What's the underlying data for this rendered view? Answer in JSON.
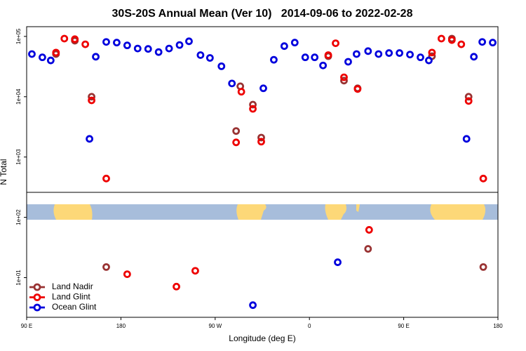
{
  "chart_data": {
    "type": "scatter",
    "title": "30S-20S Annual Mean (Ver 10)   2014-09-06 to 2022-02-28",
    "x_label": "Longitude (deg E)",
    "y_label": "N Total",
    "ylog": true,
    "legend_position": "bottom-left",
    "xlim": [
      90,
      540
    ],
    "xticks": [
      {
        "value": 90,
        "label": "90 E"
      },
      180,
      {
        "value": 270,
        "label": "90 W"
      },
      {
        "value": 360,
        "label": "0"
      },
      {
        "value": 450,
        "label": "90 E"
      },
      {
        "value": 540,
        "label": "180"
      }
    ],
    "ylim": [
      2.2,
      145000
    ],
    "yticks": [
      {
        "value": 10,
        "label": "1e+01"
      },
      {
        "value": 100,
        "label": "1e+02"
      },
      {
        "value": 1000,
        "label": "1e+03"
      },
      {
        "value": 10000,
        "label": "1e+04"
      },
      {
        "value": 100000,
        "label": "1e+05"
      }
    ],
    "series": [
      {
        "name": "Land Nadir",
        "color": "#993333",
        "x": [
          118,
          136,
          152,
          294,
          290,
          306,
          314,
          378,
          393,
          406,
          477,
          496,
          512,
          166,
          416,
          526
        ],
        "values": [
          51000,
          85000,
          10000,
          14900,
          2700,
          7400,
          2100,
          47000,
          18500,
          13800,
          47000,
          92000,
          10000,
          15,
          30,
          15
        ]
      },
      {
        "name": "Land Glint",
        "color": "#ee0000",
        "x": [
          118,
          126,
          136,
          146,
          152,
          166,
          295,
          290,
          306,
          314,
          378,
          385,
          393,
          406,
          477,
          486,
          496,
          505,
          512,
          526,
          417,
          186,
          233,
          251
        ],
        "values": [
          54000,
          92000,
          90000,
          74000,
          8700,
          440,
          12100,
          1750,
          6300,
          1800,
          49000,
          77000,
          21000,
          13400,
          54000,
          92000,
          87000,
          74000,
          8500,
          440,
          62,
          11.4,
          7.1,
          13
        ]
      },
      {
        "name": "Ocean Glint",
        "color": "#0000dd",
        "x": [
          95,
          105,
          113,
          156,
          166,
          176,
          186,
          196,
          206,
          216,
          226,
          236,
          245,
          256,
          265,
          276,
          286,
          316,
          326,
          336,
          346,
          356,
          365,
          373,
          397,
          405,
          416,
          426,
          436,
          446,
          456,
          466,
          474,
          517,
          525,
          535,
          150,
          510,
          387,
          306
        ],
        "values": [
          51000,
          45000,
          40000,
          46000,
          81000,
          79000,
          71000,
          63000,
          62000,
          55000,
          63000,
          72000,
          83000,
          49000,
          44000,
          32000,
          16600,
          13800,
          41000,
          69000,
          79000,
          45000,
          45000,
          33000,
          38000,
          51000,
          57000,
          51000,
          53000,
          53000,
          50000,
          45000,
          40000,
          46000,
          81000,
          79000,
          2000,
          2000,
          18,
          3.5
        ]
      }
    ]
  }
}
